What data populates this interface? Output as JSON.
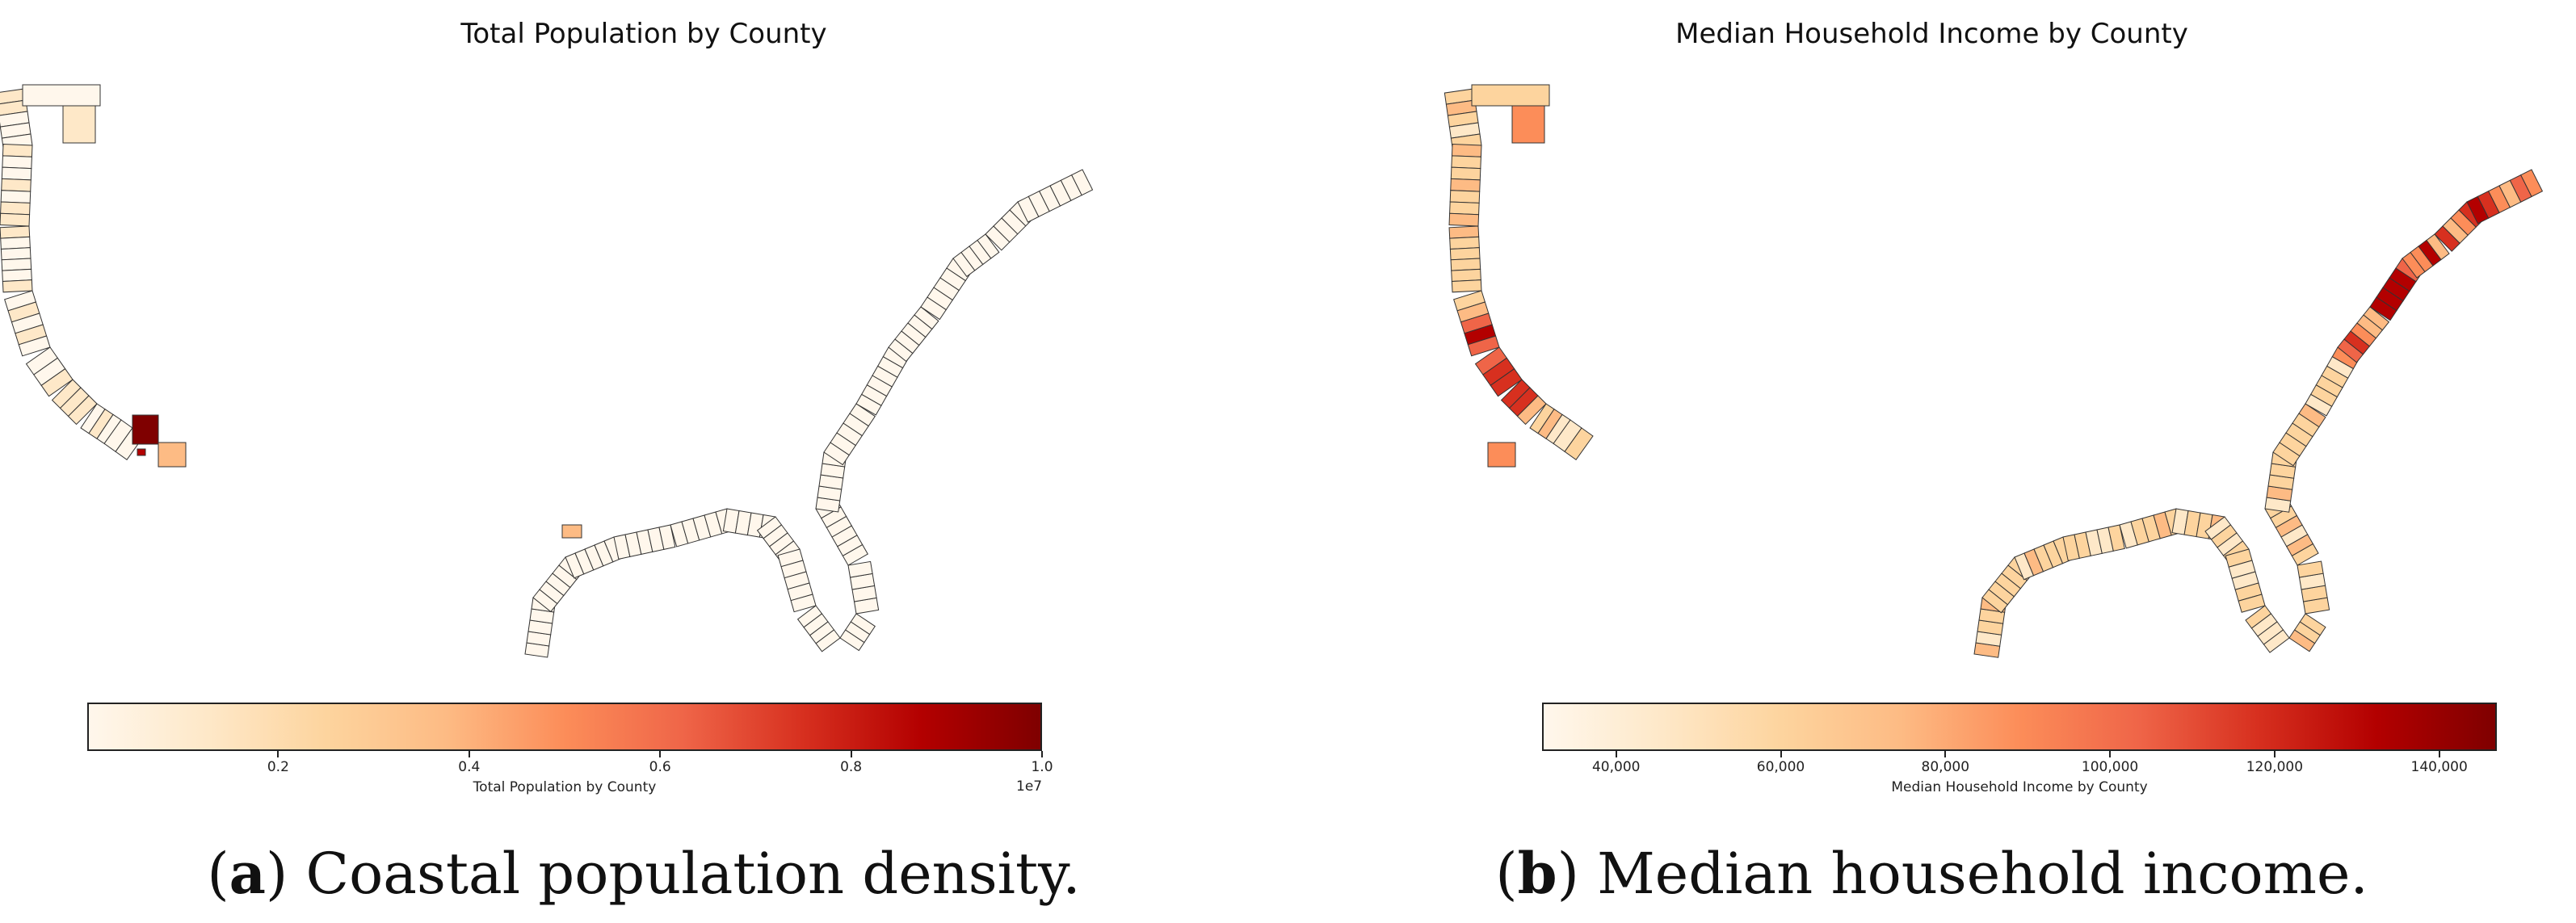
{
  "panels": [
    {
      "id": "a",
      "title": "Total Population by County",
      "colorbar": {
        "label": "Total Population by County",
        "ticks": [
          "0.2",
          "0.4",
          "0.6",
          "0.8",
          "1.0"
        ],
        "exponent": "1e7",
        "range": [
          0,
          10000000
        ],
        "colormap": "OrRd"
      },
      "caption_letter": "a",
      "caption_text": ") Coastal population density."
    },
    {
      "id": "b",
      "title": "Median Household Income by County",
      "colorbar": {
        "label": "Median Household Income by County",
        "ticks": [
          "40,000",
          "60,000",
          "80,000",
          "100,000",
          "120,000",
          "140,000"
        ],
        "range": [
          31000,
          147000
        ],
        "colormap": "OrRd"
      },
      "caption_letter": "b",
      "caption_text": ") Median household income."
    }
  ],
  "colors": {
    "cmap": [
      "#fff7ec",
      "#fee8c8",
      "#fdd49e",
      "#fdbb84",
      "#fc8d59",
      "#ef6548",
      "#d7301f",
      "#b30000",
      "#7f0000"
    ],
    "border": "#333333"
  }
}
